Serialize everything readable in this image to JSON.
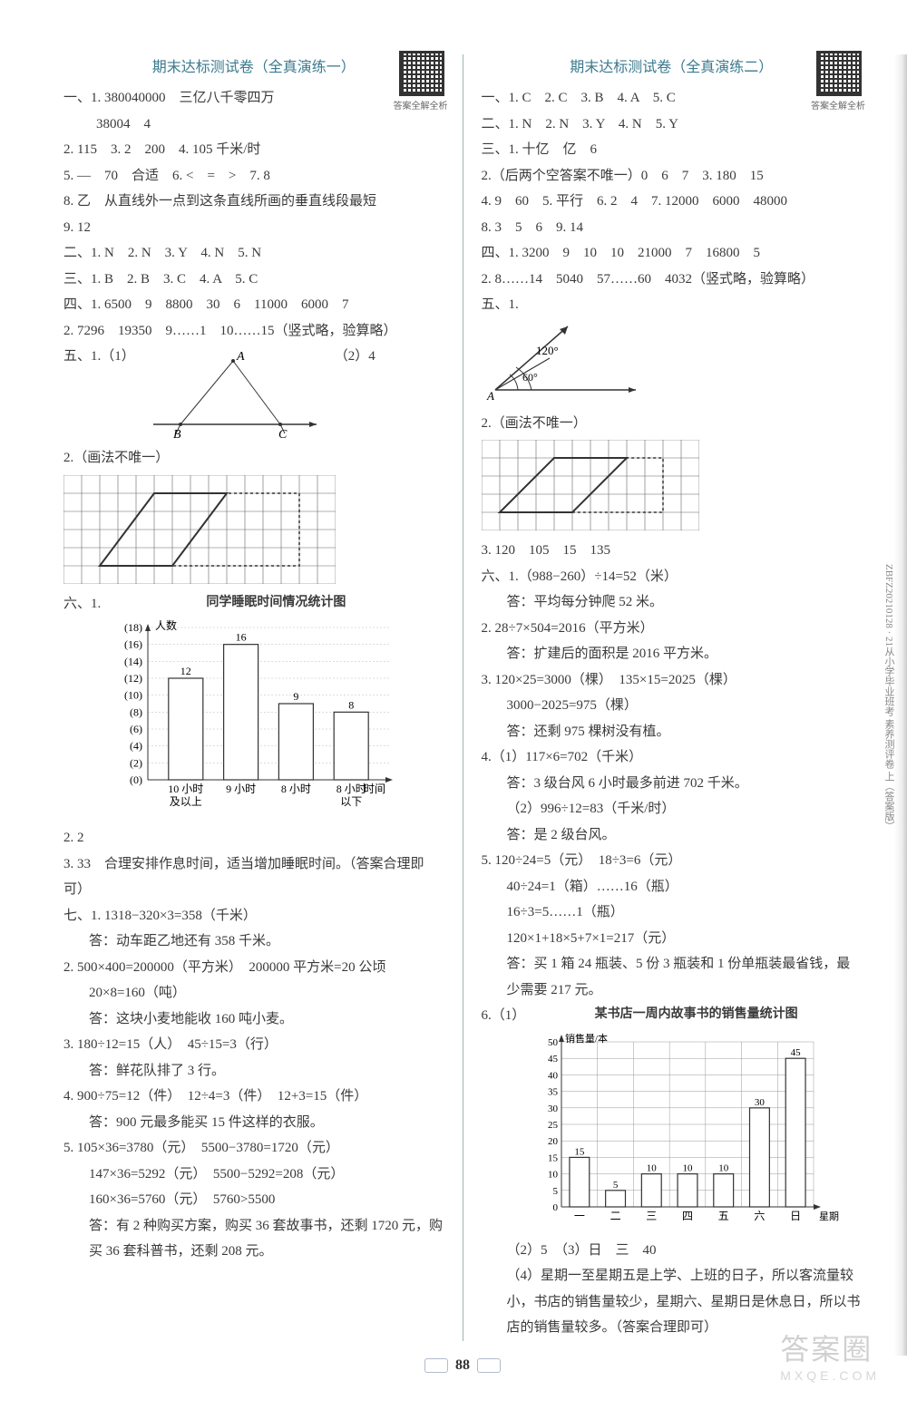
{
  "page_number": "88",
  "watermark_main": "答案圈",
  "watermark_sub": "MXQE.COM",
  "side_text": "ZBFZ20210128 · 21从小学毕业班考 素养测评卷 上（答案版）",
  "left": {
    "title": "期末达标测试卷（全真演练一）",
    "qr_caption": "答案全解全析",
    "q1": "一、1. 380040000　三亿八千零四万",
    "q1b": "38004　4",
    "q2": "2. 115　3. 2　200　4. 105 千米/时",
    "q3": "5. —　70　合适　6. <　=　>　7. 8",
    "q4": "8. 乙　从直线外一点到这条直线所画的垂直线段最短",
    "q5": "9. 12",
    "s2": "二、1. N　2. N　3. Y　4. N　5. N",
    "s3": "三、1. B　2. B　3. C　4. A　5. C",
    "s4": "四、1. 6500　9　8800　30　6　11000　6000　7",
    "s4b": "2. 7296　19350　9……1　10……15（竖式略，验算略）",
    "s5a": "五、1.（1）",
    "s5a_r": "（2）4",
    "tri_A": "A",
    "tri_B": "B",
    "tri_C": "C",
    "s5b": "2.（画法不唯一）",
    "s6": "六、1.",
    "chart1_title": "同学睡眠时间情况统计图",
    "chart1": {
      "ylabel": "人数",
      "xlabel": "时间",
      "cats": [
        "10 小时",
        "9 小时",
        "8 小时",
        "8 小时"
      ],
      "cats2": [
        "及以上",
        "",
        "",
        "以下"
      ],
      "vals": [
        12,
        16,
        9,
        8
      ],
      "ymax": 18,
      "ystep": 2,
      "bar_color": "#ffffff",
      "border": "#333333"
    },
    "s6b": "2. 2",
    "s6c": "3. 33　合理安排作息时间，适当增加睡眠时间。（答案合理即可）",
    "s7_1": "七、1. 1318−320×3=358（千米）",
    "s7_1a": "答：动车距乙地还有 358 千米。",
    "s7_2": "2. 500×400=200000（平方米）　200000 平方米=20 公顷",
    "s7_2a": "20×8=160（吨）",
    "s7_2b": "答：这块小麦地能收 160 吨小麦。",
    "s7_3": "3. 180÷12=15（人）　45÷15=3（行）",
    "s7_3a": "答：鲜花队排了 3 行。",
    "s7_4": "4. 900÷75=12（件）　12÷4=3（件）　12+3=15（件）",
    "s7_4a": "答：900 元最多能买 15 件这样的衣服。",
    "s7_5": "5. 105×36=3780（元）　5500−3780=1720（元）",
    "s7_5a": "147×36=5292（元）　5500−5292=208（元）",
    "s7_5b": "160×36=5760（元）　5760>5500",
    "s7_5c": "答：有 2 种购买方案，购买 36 套故事书，还剩 1720 元，购买 36 套科普书，还剩 208 元。"
  },
  "right": {
    "title": "期末达标测试卷（全真演练二）",
    "qr_caption": "答案全解全析",
    "r1": "一、1. C　2. C　3. B　4. A　5. C",
    "r2": "二、1. N　2. N　3. Y　4. N　5. Y",
    "r3": "三、1. 十亿　亿　6",
    "r3b": "2.（后两个空答案不唯一）0　6　7　3. 180　15",
    "r3c": "4. 9　60　5. 平行　6. 2　4　7. 12000　6000　48000",
    "r3d": "8. 3　5　6　9. 14",
    "r4": "四、1. 3200　9　10　10　21000　7　16800　5",
    "r4b": "2. 8……14　5040　57……60　4032（竖式略，验算略）",
    "r5": "五、1.",
    "angle120": "120°",
    "angle60": "60°",
    "angleA": "A",
    "r5b": "2.（画法不唯一）",
    "r5c": "3. 120　105　15　135",
    "r6_1": "六、1.（988−260）÷14=52（米）",
    "r6_1a": "答：平均每分钟爬 52 米。",
    "r6_2": "2. 28÷7×504=2016（平方米）",
    "r6_2a": "答：扩建后的面积是 2016 平方米。",
    "r6_3": "3. 120×25=3000（棵）　135×15=2025（棵）",
    "r6_3a": "3000−2025=975（棵）",
    "r6_3b": "答：还剩 975 棵树没有植。",
    "r6_4": "4.（1）117×6=702（千米）",
    "r6_4a": "答：3 级台风 6 小时最多前进 702 千米。",
    "r6_4b": "（2）996÷12=83（千米/时）",
    "r6_4c": "答：是 2 级台风。",
    "r6_5": "5. 120÷24=5（元）　18÷3=6（元）",
    "r6_5a": "40÷24=1（箱）……16（瓶）",
    "r6_5b": "16÷3=5……1（瓶）",
    "r6_5c": "120×1+18×5+7×1=217（元）",
    "r6_5d": "答：买 1 箱 24 瓶装、5 份 3 瓶装和 1 份单瓶装最省钱，最少需要 217 元。",
    "r6_6": "6.（1）",
    "chart2_title": "某书店一周内故事书的销售量统计图",
    "chart2": {
      "ylabel": "销售量/本",
      "xlabel": "星期",
      "cats": [
        "一",
        "二",
        "三",
        "四",
        "五",
        "六",
        "日"
      ],
      "vals": [
        15,
        5,
        10,
        10,
        10,
        30,
        45
      ],
      "ymax": 50,
      "ystep": 5,
      "border": "#333333"
    },
    "r6_6a": "（2）5　（3）日　三　40",
    "r6_6b": "（4）星期一至星期五是上学、上班的日子，所以客流量较小，书店的销售量较少，星期六、星期日是休息日，所以书店的销售量较多。（答案合理即可）"
  }
}
